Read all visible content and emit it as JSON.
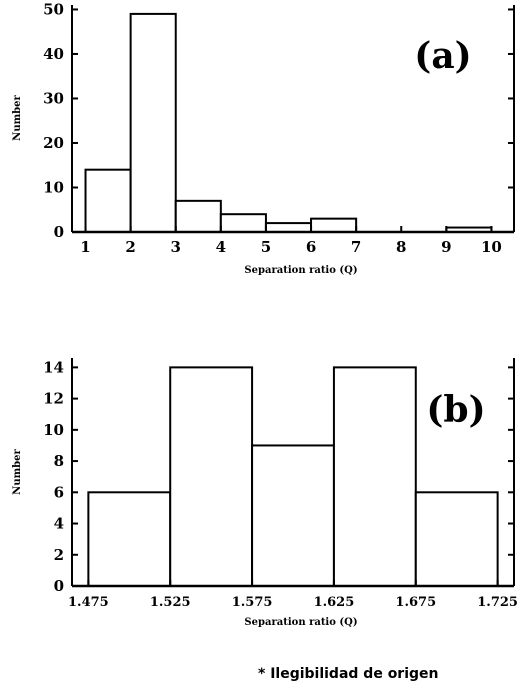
{
  "chart_data": [
    {
      "type": "bar",
      "panel_label": "(a)",
      "xlabel": "Separation ratio (Q)",
      "ylabel": "Number",
      "xlim": [
        0.7,
        10.5
      ],
      "ylim": [
        0,
        51
      ],
      "x_ticks": [
        1,
        2,
        3,
        4,
        5,
        6,
        7,
        8,
        9,
        10
      ],
      "y_ticks": [
        0,
        10,
        20,
        30,
        40,
        50
      ],
      "bins": [
        {
          "x0": 1,
          "x1": 2,
          "value": 14
        },
        {
          "x0": 2,
          "x1": 3,
          "value": 49
        },
        {
          "x0": 3,
          "x1": 4,
          "value": 7
        },
        {
          "x0": 4,
          "x1": 5,
          "value": 4
        },
        {
          "x0": 5,
          "x1": 6,
          "value": 2
        },
        {
          "x0": 6,
          "x1": 7,
          "value": 3
        },
        {
          "x0": 7,
          "x1": 8,
          "value": 0
        },
        {
          "x0": 8,
          "x1": 9,
          "value": 0
        },
        {
          "x0": 9,
          "x1": 10,
          "value": 1
        }
      ],
      "grid": false
    },
    {
      "type": "bar",
      "panel_label": "(b)",
      "xlabel": "Separation ratio (Q)",
      "ylabel": "Number",
      "xlim": [
        1.465,
        1.735
      ],
      "ylim": [
        0,
        14.6
      ],
      "x_ticks": [
        "1.475",
        "1.525",
        "1.575",
        "1.625",
        "1.675",
        "1.725"
      ],
      "y_ticks": [
        0,
        2,
        4,
        6,
        8,
        10,
        12,
        14
      ],
      "bins": [
        {
          "x0": 1.475,
          "x1": 1.525,
          "value": 6
        },
        {
          "x0": 1.525,
          "x1": 1.575,
          "value": 14
        },
        {
          "x0": 1.575,
          "x1": 1.625,
          "value": 9
        },
        {
          "x0": 1.625,
          "x1": 1.675,
          "value": 14
        },
        {
          "x0": 1.675,
          "x1": 1.725,
          "value": 6
        }
      ],
      "grid": false
    }
  ],
  "footnote": "* Ilegibilidad de origen"
}
